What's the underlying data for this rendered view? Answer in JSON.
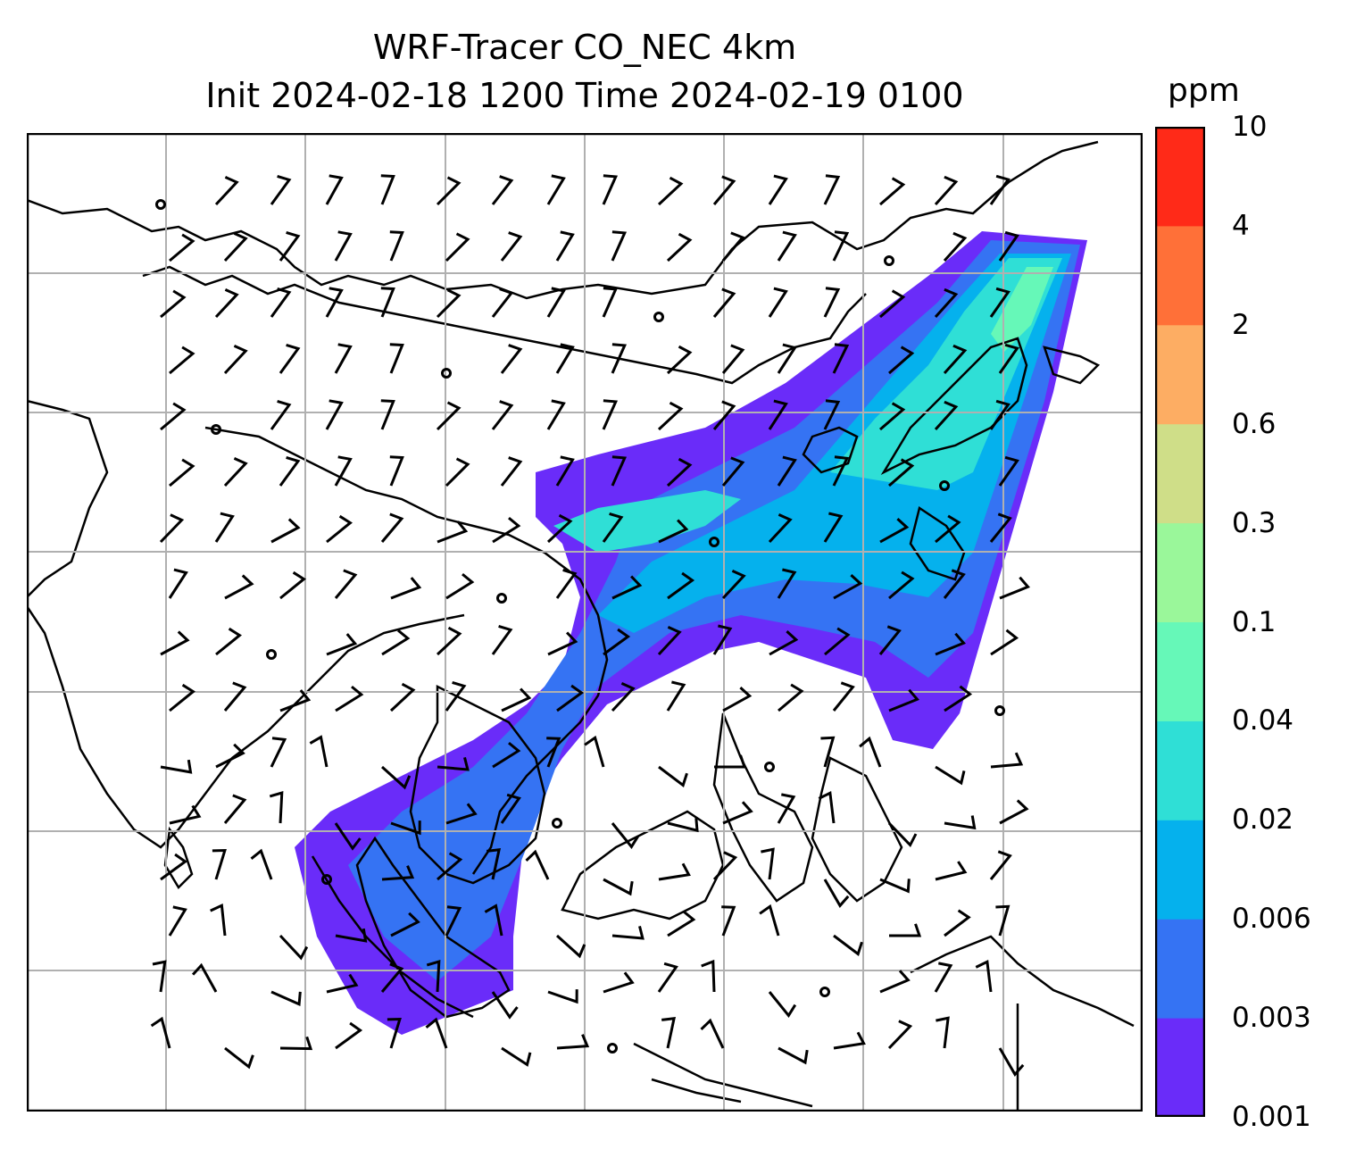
{
  "title_line1": "WRF-Tracer CO_NEC 4km",
  "title_line2": "Init 2024-02-18 1200 Time 2024-02-19 0100",
  "colorbar": {
    "unit": "ppm",
    "ticks": [
      "0.001",
      "0.003",
      "0.006",
      "0.02",
      "0.04",
      "0.1",
      "0.3",
      "0.6",
      "2",
      "4",
      "10"
    ],
    "colors": [
      "#6a2cf9",
      "#3573f3",
      "#05b1ed",
      "#2fdfd6",
      "#66f8b8",
      "#9af79a",
      "#cfde88",
      "#fdad63",
      "#ff7038",
      "#ff2a18"
    ]
  },
  "map": {
    "gridlines": "on",
    "plume_levels": {
      "outer": "0.001",
      "mid": "0.003",
      "core": "0.006",
      "hot": "0.02"
    }
  }
}
